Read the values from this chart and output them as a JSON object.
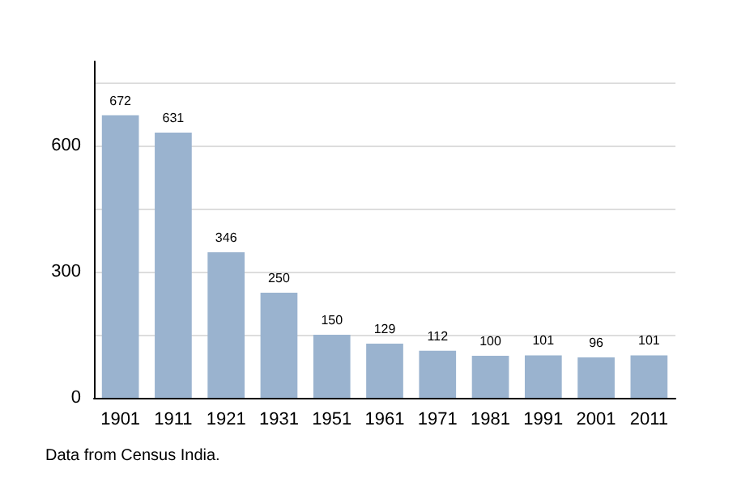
{
  "chart_data": {
    "type": "bar",
    "categories": [
      "1901",
      "1911",
      "1921",
      "1931",
      "1951",
      "1961",
      "1971",
      "1981",
      "1991",
      "2001",
      "2011"
    ],
    "values": [
      672,
      631,
      346,
      250,
      150,
      129,
      112,
      100,
      101,
      96,
      101
    ],
    "color": "#9ab3cf",
    "ylim": [
      0,
      800
    ],
    "yticks": [
      0,
      {
        "value": 150,
        "label": null
      },
      300,
      {
        "value": 450,
        "label": null
      },
      600,
      {
        "value": 750,
        "label": null
      }
    ],
    "grid": "y",
    "data_labels": true,
    "annotations": [
      "Data from Census India."
    ]
  }
}
